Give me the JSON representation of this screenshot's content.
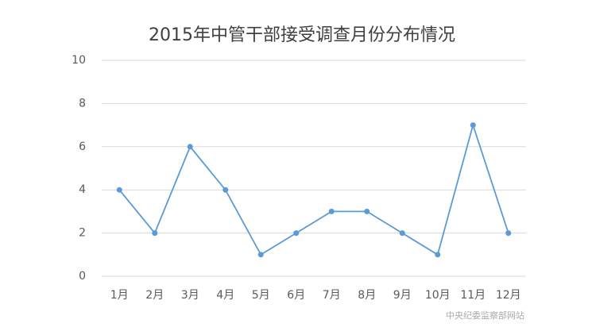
{
  "chart_data": {
    "type": "line",
    "title": "2015年中管干部接受调查月份分布情况",
    "categories": [
      "1月",
      "2月",
      "3月",
      "4月",
      "5月",
      "6月",
      "7月",
      "8月",
      "9月",
      "10月",
      "11月",
      "12月"
    ],
    "values": [
      4,
      2,
      6,
      4,
      1,
      2,
      3,
      3,
      2,
      1,
      7,
      2
    ],
    "color": "#5b9bd5",
    "ylim": [
      0,
      10
    ],
    "yticks": [
      0,
      2,
      4,
      6,
      8,
      10
    ],
    "grid": true,
    "annotation": "中央纪委监察部网站"
  }
}
